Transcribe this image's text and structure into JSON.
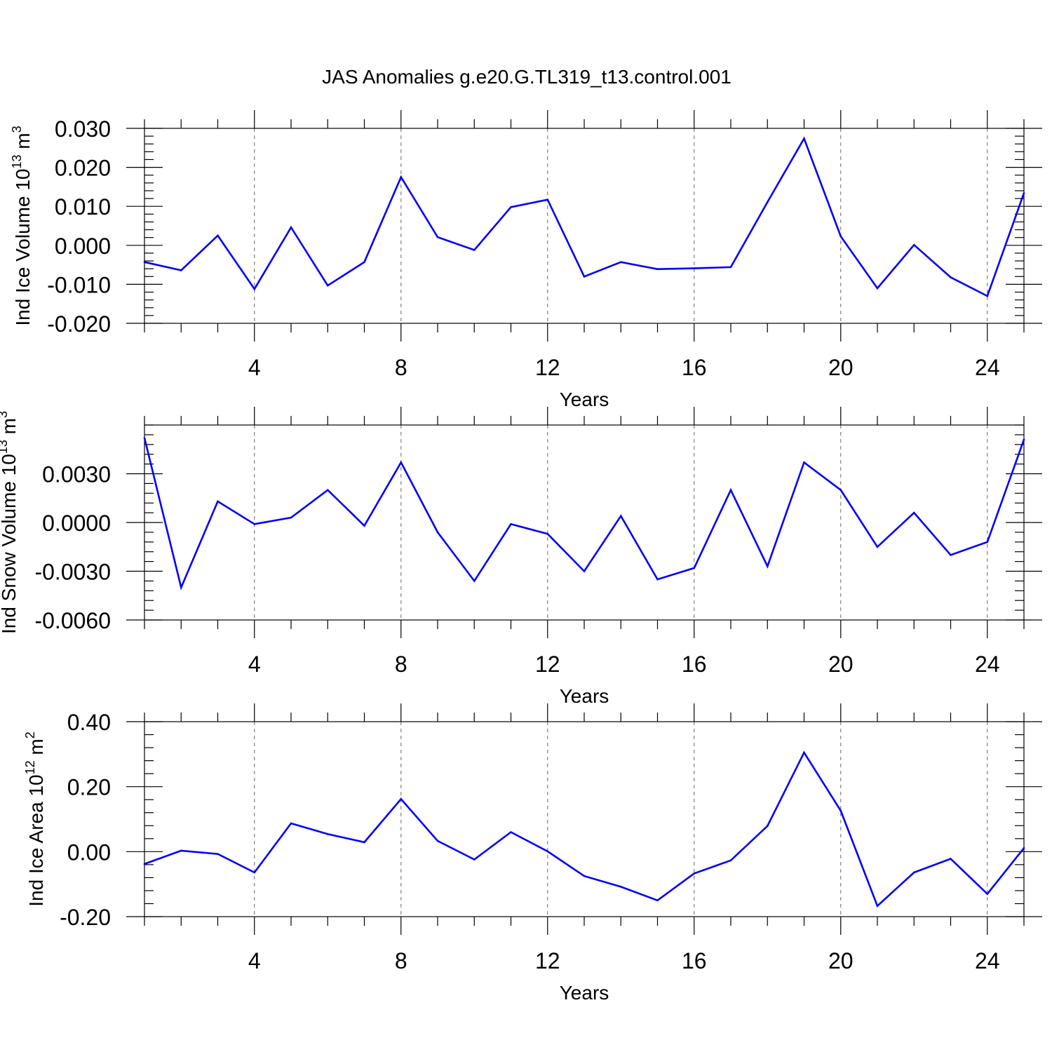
{
  "title": "JAS Anomalies g.e20.G.TL319_t13.control.001",
  "line_color": "#0000ff",
  "chart_data": [
    {
      "type": "line",
      "name": "ind-ice-volume",
      "ylabel_text": "Ind Ice Volume 10",
      "ylabel_exp": "13",
      "ylabel_unit": " m",
      "ylabel_unit_exp": "3",
      "xlabel": "Years",
      "xlim": [
        1,
        25
      ],
      "ylim": [
        -0.02,
        0.03
      ],
      "xticks": [
        4,
        8,
        12,
        16,
        20,
        24
      ],
      "yticks": [
        -0.02,
        -0.01,
        0.0,
        0.01,
        0.02,
        0.03
      ],
      "ytick_labels": [
        "-0.020",
        "-0.010",
        "0.000",
        "0.010",
        "0.020",
        "0.030"
      ],
      "x": [
        1,
        2,
        3,
        4,
        5,
        6,
        7,
        8,
        9,
        10,
        11,
        12,
        13,
        14,
        15,
        16,
        17,
        18,
        19,
        20,
        21,
        22,
        23,
        24,
        25
      ],
      "values": [
        -0.0043,
        -0.0064,
        0.0025,
        -0.0112,
        0.0046,
        -0.0103,
        -0.0043,
        0.0175,
        0.0021,
        -0.0012,
        0.0098,
        0.0117,
        -0.008,
        -0.0043,
        -0.0061,
        -0.0059,
        -0.0056,
        0.0111,
        0.0274,
        0.0023,
        -0.011,
        0.0001,
        -0.0082,
        -0.013,
        0.0134
      ]
    },
    {
      "type": "line",
      "name": "ind-snow-volume",
      "ylabel_text": "Ind Snow Volume 10",
      "ylabel_exp": "13",
      "ylabel_unit": " m",
      "ylabel_unit_exp": "3",
      "xlabel": "Years",
      "xlim": [
        1,
        25
      ],
      "ylim": [
        -0.006,
        0.006
      ],
      "xticks": [
        4,
        8,
        12,
        16,
        20,
        24
      ],
      "yticks": [
        -0.006,
        -0.003,
        0.0,
        0.003
      ],
      "ytick_labels": [
        "-0.0060",
        "-0.0030",
        "0.0000",
        "0.0030"
      ],
      "x": [
        1,
        2,
        3,
        4,
        5,
        6,
        7,
        8,
        9,
        10,
        11,
        12,
        13,
        14,
        15,
        16,
        17,
        18,
        19,
        20,
        21,
        22,
        23,
        24,
        25
      ],
      "values": [
        0.0052,
        -0.004,
        0.0013,
        -0.0001,
        0.0003,
        0.002,
        -0.0002,
        0.0037,
        -0.0006,
        -0.0036,
        -0.0001,
        -0.0007,
        -0.003,
        0.0004,
        -0.0035,
        -0.0028,
        0.002,
        -0.0027,
        0.0037,
        0.002,
        -0.0015,
        0.0006,
        -0.002,
        -0.0012,
        0.0051
      ]
    },
    {
      "type": "line",
      "name": "ind-ice-area",
      "ylabel_text": "Ind Ice Area 10",
      "ylabel_exp": "12",
      "ylabel_unit": " m",
      "ylabel_unit_exp": "2",
      "xlabel": "Years",
      "xlim": [
        1,
        25
      ],
      "ylim": [
        -0.2,
        0.4
      ],
      "xticks": [
        4,
        8,
        12,
        16,
        20,
        24
      ],
      "yticks": [
        -0.2,
        0.0,
        0.2,
        0.4
      ],
      "ytick_labels": [
        "-0.20",
        "0.00",
        "0.20",
        "0.40"
      ],
      "x": [
        1,
        2,
        3,
        4,
        5,
        6,
        7,
        8,
        9,
        10,
        11,
        12,
        13,
        14,
        15,
        16,
        17,
        18,
        19,
        20,
        21,
        22,
        23,
        24,
        25
      ],
      "values": [
        -0.038,
        0.003,
        -0.007,
        -0.064,
        0.087,
        0.054,
        0.029,
        0.162,
        0.033,
        -0.024,
        0.06,
        0.001,
        -0.075,
        -0.108,
        -0.15,
        -0.067,
        -0.027,
        0.079,
        0.305,
        0.126,
        -0.167,
        -0.064,
        -0.022,
        -0.13,
        0.011
      ]
    }
  ]
}
